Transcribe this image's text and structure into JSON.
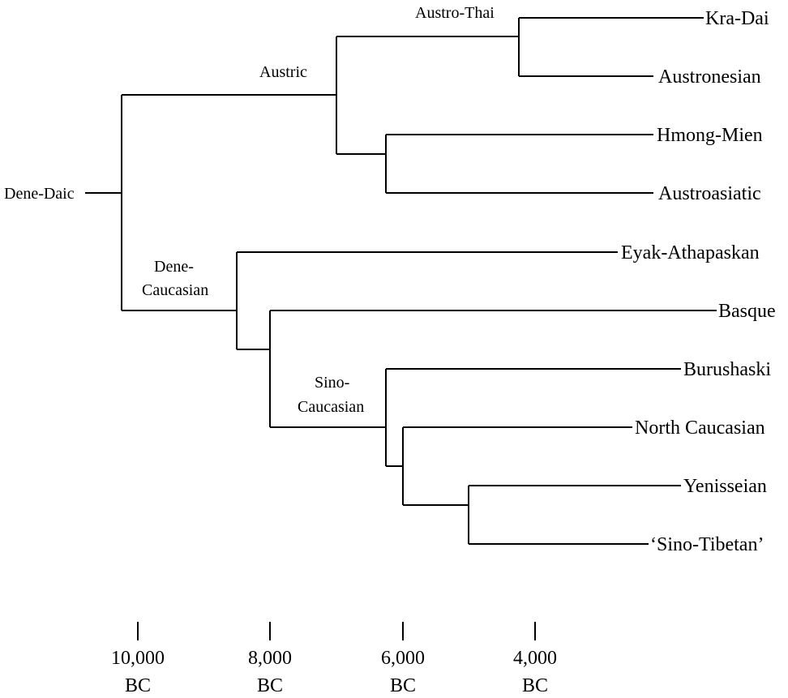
{
  "tree": {
    "root_label": "Dene-Daic",
    "node_labels": {
      "austric": "Austric",
      "austro_thai": "Austro-Thai",
      "dene_caucasian": [
        "Dene-",
        "Caucasian"
      ],
      "sino_caucasian": [
        "Sino-",
        "Caucasian"
      ]
    },
    "leaves": [
      "Kra-Dai",
      "Austronesian",
      "Hmong-Mien",
      "Austroasiatic",
      "Eyak-Athapaskan",
      "Basque",
      "Burushaski",
      "North Caucasian",
      "Yenisseian",
      "‘Sino-Tibetan’"
    ]
  },
  "timeline": {
    "ticks": [
      {
        "year": "10,000",
        "era": "BC"
      },
      {
        "year": "8,000",
        "era": "BC"
      },
      {
        "year": "6,000",
        "era": "BC"
      },
      {
        "year": "4,000",
        "era": "BC"
      }
    ]
  }
}
